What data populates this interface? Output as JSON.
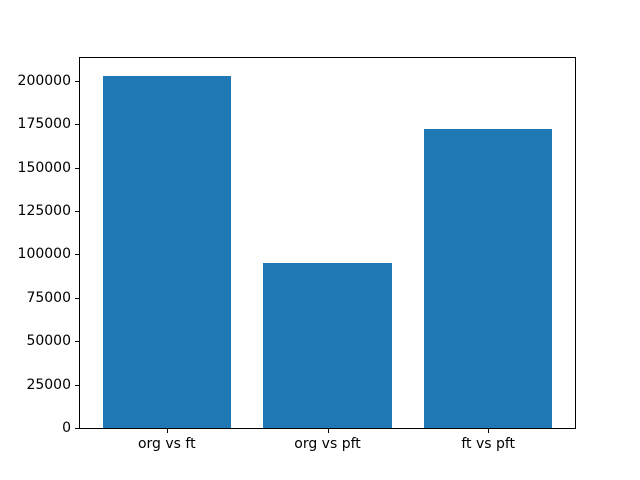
{
  "figure": {
    "background_color": "#ffffff",
    "axis_color": "#000000",
    "title": ""
  },
  "chart_data": {
    "type": "bar",
    "title": "",
    "xlabel": "",
    "ylabel": "",
    "categories": [
      "org vs ft",
      "org vs pft",
      "ft vs pft"
    ],
    "values": [
      203000,
      95000,
      172000
    ],
    "bar_color": "#1f77b4",
    "bar_width_fraction": 0.8,
    "ylim": [
      0,
      213150
    ],
    "yticks": [
      0,
      25000,
      50000,
      75000,
      100000,
      125000,
      150000,
      175000,
      200000
    ],
    "ytick_labels": [
      "0",
      "25000",
      "50000",
      "75000",
      "100000",
      "125000",
      "150000",
      "175000",
      "200000"
    ],
    "grid": false,
    "legend": "none"
  }
}
